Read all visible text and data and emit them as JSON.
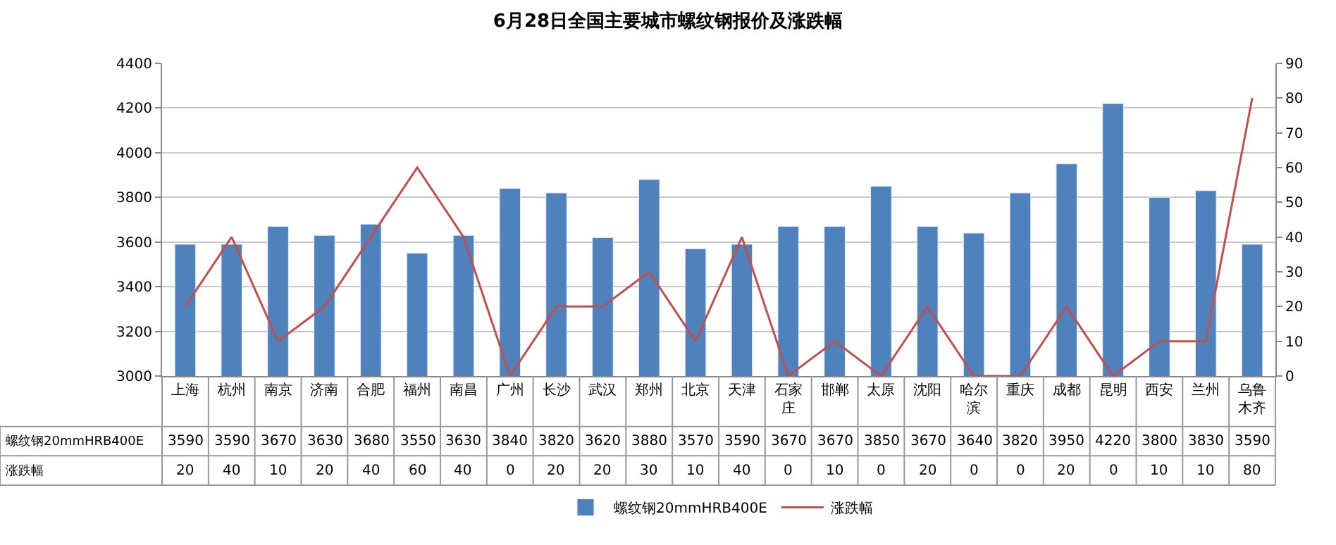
{
  "chart_data": {
    "type": "bar",
    "title": "6月28日全国主要城市螺纹钢报价及涨跌幅",
    "categories": [
      "上海",
      "杭州",
      "南京",
      "济南",
      "合肥",
      "福州",
      "南昌",
      "广州",
      "长沙",
      "武汉",
      "郑州",
      "北京",
      "天津",
      "石家庄",
      "邯郸",
      "太原",
      "沈阳",
      "哈尔滨",
      "重庆",
      "成都",
      "昆明",
      "西安",
      "兰州",
      "乌鲁木齐"
    ],
    "series": [
      {
        "name": "螺纹钢20mmHRB400E",
        "color": "#4f81bd",
        "values": [
          3590,
          3590,
          3670,
          3630,
          3680,
          3550,
          3630,
          3840,
          3820,
          3620,
          3880,
          3570,
          3590,
          3670,
          3670,
          3850,
          3670,
          3640,
          3820,
          3950,
          4220,
          3800,
          3830,
          3590
        ]
      },
      {
        "name": "涨跌幅",
        "color": "#c0504d",
        "type": "line",
        "axis": "y2",
        "values": [
          20,
          40,
          10,
          20,
          40,
          60,
          40,
          0,
          20,
          20,
          30,
          10,
          40,
          0,
          10,
          0,
          20,
          0,
          0,
          20,
          0,
          10,
          10,
          80
        ]
      }
    ],
    "ylim": [
      3000,
      4400
    ],
    "yticks": [
      3000,
      3200,
      3400,
      3600,
      3800,
      4000,
      4200,
      4400
    ],
    "y2lim": [
      0,
      90
    ],
    "y2ticks": [
      0,
      10,
      20,
      30,
      40,
      50,
      60,
      70,
      80,
      90
    ],
    "grid": "y",
    "legend": "bottom",
    "data_labels": true,
    "marker": "none",
    "line_style": "solid"
  }
}
